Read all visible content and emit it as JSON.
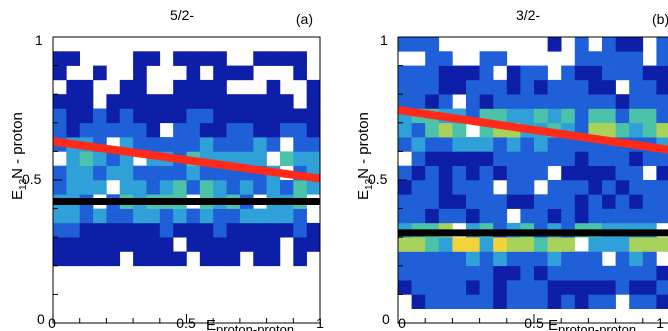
{
  "chart_data": [
    {
      "type": "heatmap",
      "title": "5/2-",
      "panel_label": "(a)",
      "xlabel": "E",
      "xlabel_sub": "proton-proton",
      "ylabel": "E",
      "ylabel_sub": "13",
      "ylabel_rest": "N - proton",
      "xlim": [
        0,
        1
      ],
      "ylim": [
        0,
        1
      ],
      "x_ticks": [
        "0",
        "0.5",
        "1"
      ],
      "y_ticks": [
        "0",
        "0.5",
        "1"
      ],
      "bins": [
        20,
        20
      ],
      "color_scale": [
        "#0d1fa8",
        "#1f5fd8",
        "#2fa0d8",
        "#4cc3a8",
        "#a9d25a",
        "#f3d33a",
        "#fff21a"
      ],
      "seed": 7,
      "density": {
        "bands": [
          {
            "y": 0.42,
            "w": 0.06,
            "a": 2.2
          },
          {
            "y": 0.57,
            "w": 0.1,
            "a": 1.6
          }
        ],
        "base": 0.6,
        "y_range": [
          0.22,
          0.96
        ],
        "sparse_above": 0.78
      },
      "fit_lines": [
        {
          "name": "",
          "color": "#ff2a1a",
          "points": [
            [
              0,
              0.635
            ],
            [
              1,
              0.505
            ]
          ]
        },
        {
          "name": "",
          "color": "#000000",
          "points": [
            [
              0,
              0.425
            ],
            [
              1,
              0.425
            ]
          ]
        }
      ]
    },
    {
      "type": "heatmap",
      "title": "3/2-",
      "panel_label": "(b)",
      "xlabel": "E",
      "xlabel_sub": "proton-proton",
      "ylabel": "E",
      "ylabel_sub": "13",
      "ylabel_rest": "N - proton",
      "xlim": [
        0,
        1
      ],
      "ylim": [
        0,
        1
      ],
      "x_ticks": [
        "0",
        "0.5",
        "1"
      ],
      "y_ticks": [
        "0",
        "0.5",
        "1"
      ],
      "bins": [
        20,
        20
      ],
      "color_scale": [
        "#0d1fa8",
        "#1f5fd8",
        "#2fa0d8",
        "#4cc3a8",
        "#a9d25a",
        "#f3d33a",
        "#fff21a"
      ],
      "seed": 19,
      "density": {
        "bands": [
          {
            "y": 0.29,
            "w": 0.05,
            "a": 3.0
          },
          {
            "y": 0.69,
            "w": 0.06,
            "a": 2.4
          }
        ],
        "base": 1.1,
        "y_range": [
          0.05,
          0.98
        ],
        "sparse_above": 0.9
      },
      "fit_lines": [
        {
          "name": "",
          "color": "#ff2a1a",
          "points": [
            [
              0,
              0.745
            ],
            [
              1,
              0.605
            ]
          ]
        },
        {
          "name": "",
          "color": "#000000",
          "points": [
            [
              0,
              0.315
            ],
            [
              1,
              0.315
            ]
          ]
        }
      ]
    }
  ]
}
